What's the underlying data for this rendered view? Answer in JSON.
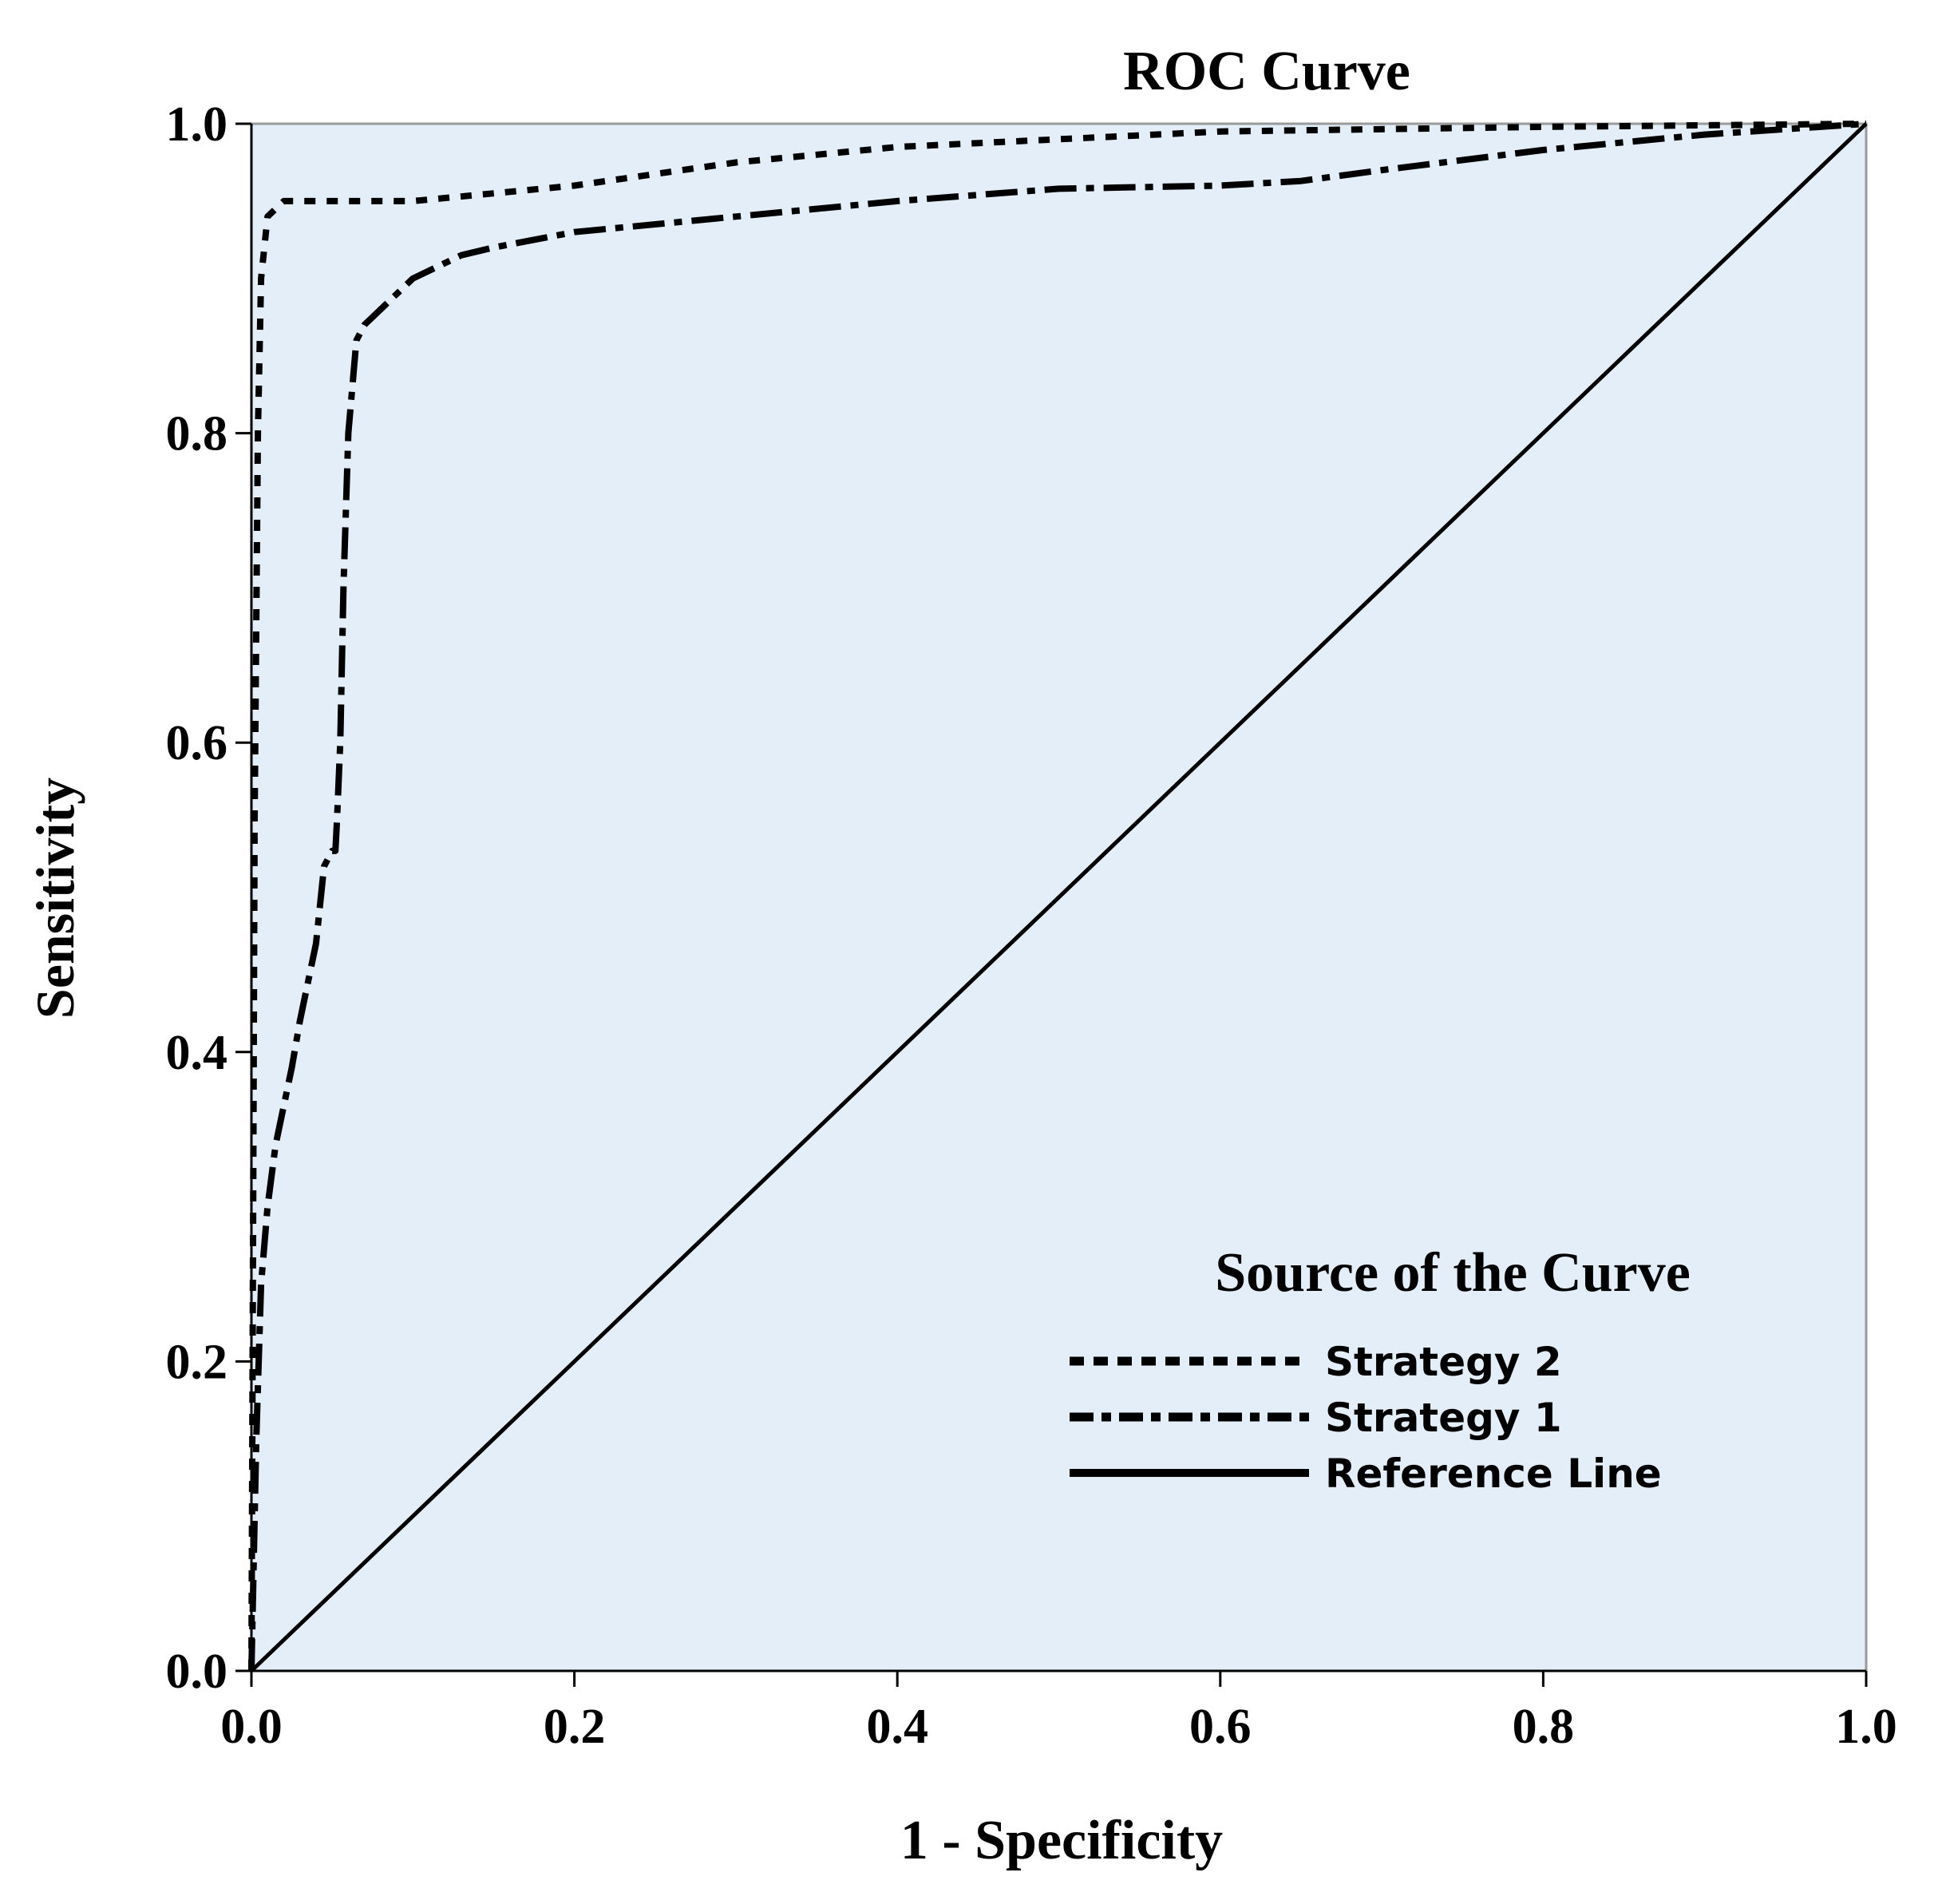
{
  "chart_data": {
    "type": "line",
    "title": "ROC Curve",
    "xlabel": "1 - Specificity",
    "ylabel": "Sensitivity",
    "xlim": [
      0,
      1
    ],
    "ylim": [
      0,
      1
    ],
    "x_ticks": [
      "0.0",
      "0.2",
      "0.4",
      "0.6",
      "0.8",
      "1.0"
    ],
    "y_ticks": [
      "0.0",
      "0.2",
      "0.4",
      "0.6",
      "0.8",
      "1.0"
    ],
    "grid": false,
    "plot_background": "#e4eef9",
    "legend": {
      "title": "Source of the Curve",
      "placement": "bottom-right"
    },
    "series": [
      {
        "name": "Strategy 2",
        "style": "dotted",
        "color": "#000000",
        "points": [
          [
            0,
            0
          ],
          [
            0.002,
            0.55
          ],
          [
            0.004,
            0.8
          ],
          [
            0.006,
            0.9
          ],
          [
            0.01,
            0.94
          ],
          [
            0.02,
            0.95
          ],
          [
            0.1,
            0.95
          ],
          [
            0.2,
            0.96
          ],
          [
            0.3,
            0.975
          ],
          [
            0.4,
            0.985
          ],
          [
            0.5,
            0.99
          ],
          [
            0.6,
            0.995
          ],
          [
            0.8,
            0.998
          ],
          [
            1,
            1
          ]
        ]
      },
      {
        "name": "Strategy 1",
        "style": "dash-dot",
        "color": "#000000",
        "points": [
          [
            0,
            0
          ],
          [
            0.003,
            0.15
          ],
          [
            0.006,
            0.25
          ],
          [
            0.01,
            0.3
          ],
          [
            0.015,
            0.34
          ],
          [
            0.025,
            0.39
          ],
          [
            0.03,
            0.42
          ],
          [
            0.04,
            0.47
          ],
          [
            0.045,
            0.52
          ],
          [
            0.05,
            0.53
          ],
          [
            0.052,
            0.53
          ],
          [
            0.053,
            0.55
          ],
          [
            0.055,
            0.6
          ],
          [
            0.057,
            0.7
          ],
          [
            0.06,
            0.8
          ],
          [
            0.065,
            0.86
          ],
          [
            0.07,
            0.87
          ],
          [
            0.08,
            0.88
          ],
          [
            0.1,
            0.9
          ],
          [
            0.13,
            0.915
          ],
          [
            0.15,
            0.92
          ],
          [
            0.2,
            0.93
          ],
          [
            0.3,
            0.94
          ],
          [
            0.4,
            0.95
          ],
          [
            0.5,
            0.958
          ],
          [
            0.6,
            0.96
          ],
          [
            0.65,
            0.963
          ],
          [
            0.7,
            0.97
          ],
          [
            0.8,
            0.983
          ],
          [
            0.9,
            0.993
          ],
          [
            1,
            1
          ]
        ]
      },
      {
        "name": "Reference Line",
        "style": "solid",
        "color": "#000000",
        "points": [
          [
            0,
            0
          ],
          [
            1,
            1
          ]
        ]
      }
    ]
  }
}
